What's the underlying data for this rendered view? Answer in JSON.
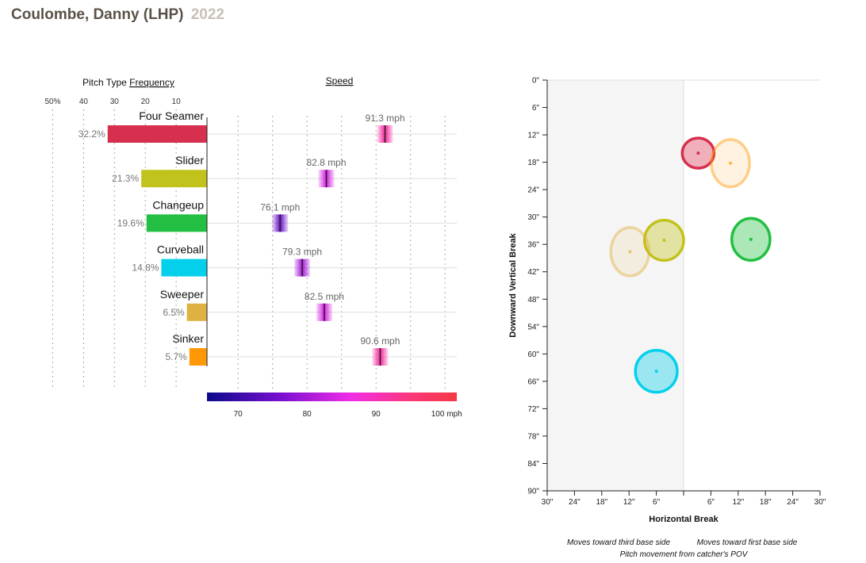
{
  "header": {
    "player": "Coulombe, Danny (LHP)",
    "season": "2022"
  },
  "chart_data": [
    {
      "type": "bar",
      "title_prefix": "Pitch Type",
      "title_link": "Frequency",
      "axis_ticks": [
        "50%",
        "40",
        "30",
        "20",
        "10"
      ],
      "axis_tick_values": [
        50,
        40,
        30,
        20,
        10
      ],
      "categories": [
        "Four Seamer",
        "Slider",
        "Changeup",
        "Curveball",
        "Sweeper",
        "Sinker"
      ],
      "values": [
        32.2,
        21.3,
        19.6,
        14.8,
        6.5,
        5.7
      ],
      "labels": [
        "32.2%",
        "21.3%",
        "19.6%",
        "14.8%",
        "6.5%",
        "5.7%"
      ],
      "colors": [
        "#d6304e",
        "#c2c21c",
        "#22bf42",
        "#04d0eb",
        "#dfb140",
        "#ff9806"
      ],
      "xlim": [
        0,
        50
      ]
    },
    {
      "type": "scatter",
      "title": "Speed",
      "categories": [
        "Four Seamer",
        "Slider",
        "Changeup",
        "Curveball",
        "Sweeper",
        "Sinker"
      ],
      "values": [
        91.3,
        82.8,
        76.1,
        79.3,
        82.5,
        90.6
      ],
      "labels": [
        "91.3 mph",
        "82.8 mph",
        "76.1 mph",
        "79.3 mph",
        "82.5 mph",
        "90.6 mph"
      ],
      "marker_colors": [
        "#f4259a",
        "#d31ee2",
        "#6a0ec8",
        "#a417da",
        "#d31ee2",
        "#f4259a"
      ],
      "scale_ticks": [
        "70",
        "80",
        "90",
        "100 mph"
      ],
      "scale_tick_values": [
        70,
        80,
        90,
        100
      ],
      "xlim": [
        65.5,
        101.7
      ],
      "gradient_stops": [
        "#0a0a8a",
        "#7a10d0",
        "#f22ee6",
        "#fa3878",
        "#f53845"
      ]
    },
    {
      "type": "scatter",
      "title": "Pitch movement from catcher's POV",
      "xlabel": "Horizontal Break",
      "ylabel": "Downward Vertical Break",
      "x_ticks": [
        "30\"",
        "24\"",
        "18\"",
        "12\"",
        "6\"",
        "",
        "6\"",
        "12\"",
        "18\"",
        "24\"",
        "30\""
      ],
      "x_tick_values": [
        -30,
        -24,
        -18,
        -12,
        -6,
        0,
        6,
        12,
        18,
        24,
        30
      ],
      "y_ticks": [
        "0\"",
        "6\"",
        "12\"",
        "18\"",
        "24\"",
        "30\"",
        "36\"",
        "42\"",
        "48\"",
        "54\"",
        "60\"",
        "66\"",
        "72\"",
        "78\"",
        "84\"",
        "90\""
      ],
      "y_tick_values": [
        0,
        6,
        12,
        18,
        24,
        30,
        36,
        42,
        48,
        54,
        60,
        66,
        72,
        78,
        84,
        90
      ],
      "xlim": [
        -30,
        30
      ],
      "ylim": [
        0,
        90
      ],
      "left_caption": "Moves toward third base side",
      "right_caption": "Moves toward first base side",
      "points": [
        {
          "name": "Four Seamer",
          "x": 3.2,
          "y": 16.0,
          "rx": 3.5,
          "ry": 3.3,
          "color": "#d6304e",
          "light": false
        },
        {
          "name": "Slider",
          "x": -4.3,
          "y": 35.1,
          "rx": 4.3,
          "ry": 4.4,
          "color": "#c2c21c",
          "light": false
        },
        {
          "name": "Changeup",
          "x": 14.8,
          "y": 34.9,
          "rx": 4.2,
          "ry": 4.6,
          "color": "#22bf42",
          "light": false
        },
        {
          "name": "Curveball",
          "x": -6.0,
          "y": 63.8,
          "rx": 4.6,
          "ry": 4.6,
          "color": "#04d0eb",
          "light": false
        },
        {
          "name": "Sweeper",
          "x": -11.8,
          "y": 37.6,
          "rx": 4.2,
          "ry": 5.3,
          "color": "#dfb140",
          "light": true
        },
        {
          "name": "Sinker",
          "x": 10.3,
          "y": 18.2,
          "rx": 4.2,
          "ry": 5.2,
          "color": "#ff9806",
          "light": true
        }
      ]
    }
  ]
}
